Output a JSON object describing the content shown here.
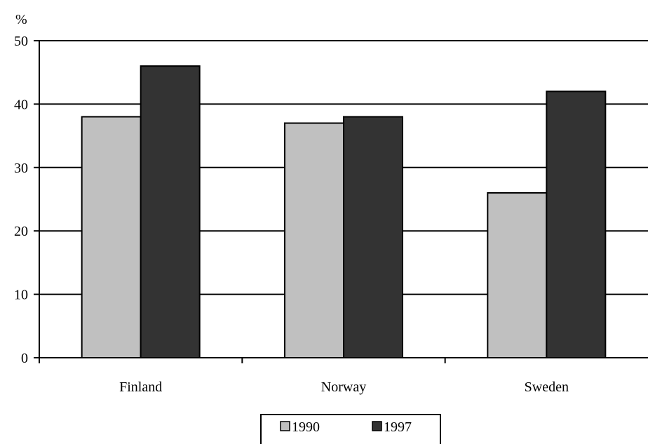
{
  "chart_data": {
    "type": "bar",
    "title": "",
    "xlabel": "",
    "ylabel": "%",
    "categories": [
      "Finland",
      "Norway",
      "Sweden"
    ],
    "series": [
      {
        "name": "1990",
        "values": [
          38,
          37,
          26
        ],
        "color": "#c0c0c0"
      },
      {
        "name": "1997",
        "values": [
          46,
          38,
          42
        ],
        "color": "#333333"
      }
    ],
    "ylim": [
      0,
      50
    ],
    "yticks": [
      "0",
      "10",
      "20",
      "30",
      "40",
      "50"
    ],
    "grid": true,
    "legend_position": "bottom"
  }
}
